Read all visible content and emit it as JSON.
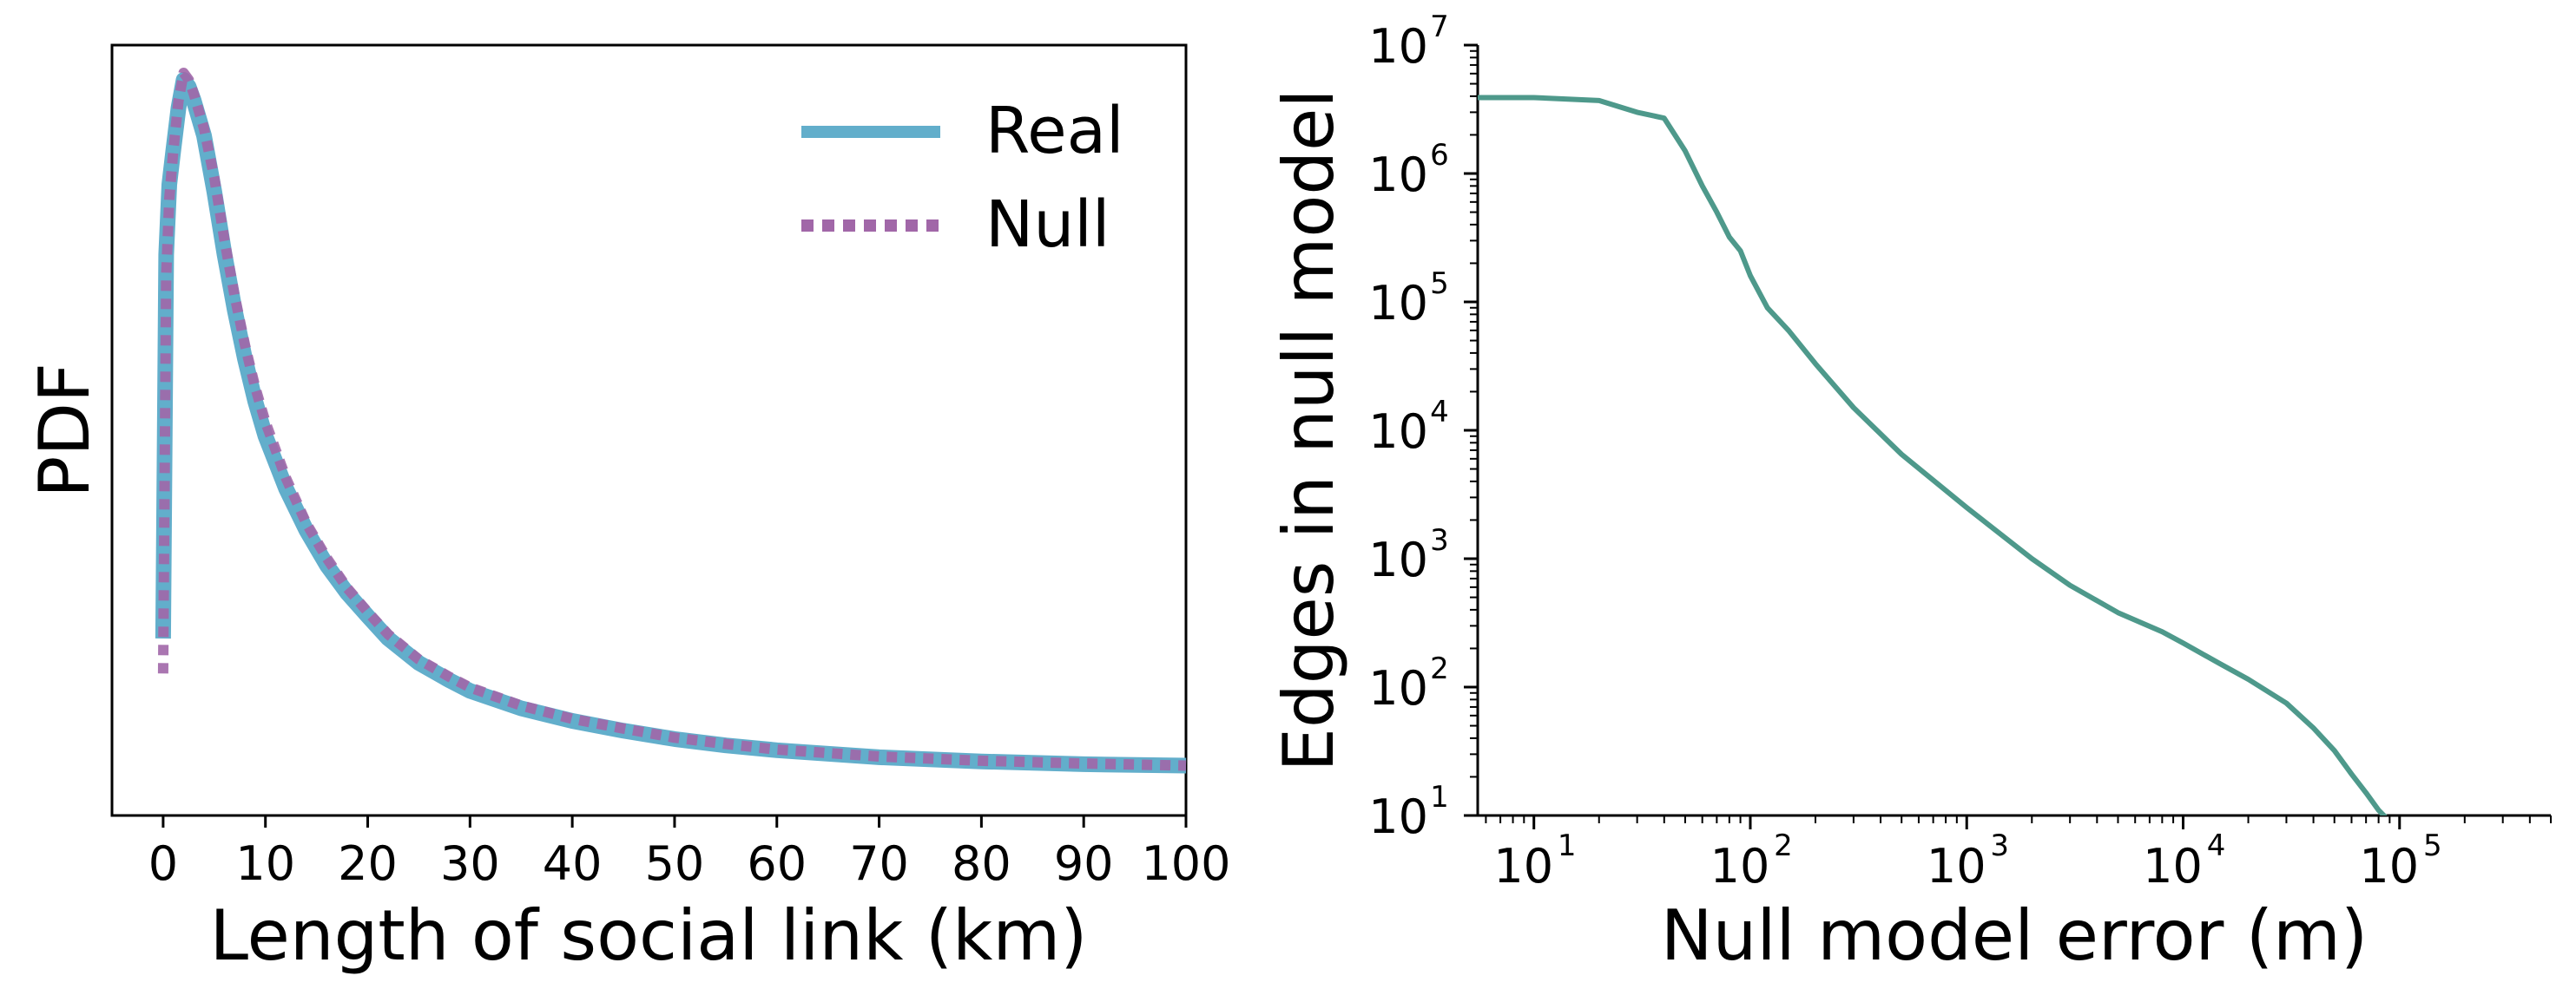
{
  "chart_data": [
    {
      "type": "line",
      "title": "",
      "xlabel": "Length of social link (km)",
      "ylabel": "PDF",
      "xlim": [
        -5,
        100
      ],
      "xticks": [
        0,
        10,
        20,
        30,
        40,
        50,
        60,
        70,
        80,
        90,
        100
      ],
      "yticks": [],
      "ylim_relative": [
        0,
        1.05
      ],
      "legend": {
        "placement": "top-right",
        "entries": [
          "Real",
          "Null"
        ]
      },
      "series": [
        {
          "name": "Real",
          "color": "#62AECB",
          "style": "solid",
          "x": [
            0,
            0.3,
            0.6,
            1.0,
            1.5,
            2.0,
            2.5,
            3,
            4,
            5,
            6,
            7,
            8,
            9,
            10,
            12,
            14,
            16,
            18,
            20,
            22,
            25,
            28,
            30,
            35,
            40,
            45,
            50,
            55,
            60,
            70,
            80,
            90,
            100
          ],
          "values": [
            0.2,
            0.75,
            0.85,
            0.9,
            0.96,
            1.0,
            0.99,
            0.97,
            0.92,
            0.84,
            0.75,
            0.67,
            0.6,
            0.54,
            0.49,
            0.415,
            0.355,
            0.305,
            0.265,
            0.232,
            0.2,
            0.165,
            0.14,
            0.125,
            0.1,
            0.082,
            0.068,
            0.056,
            0.047,
            0.04,
            0.03,
            0.024,
            0.02,
            0.018
          ]
        },
        {
          "name": "Null",
          "color": "#A167A8",
          "style": "dotted",
          "x": [
            0,
            0.3,
            0.6,
            1.0,
            1.5,
            2.0,
            2.5,
            3,
            4,
            5,
            6,
            7,
            8,
            9,
            10,
            12,
            14,
            16,
            18,
            20,
            22,
            25,
            28,
            30,
            35,
            40,
            45,
            50,
            55,
            60,
            70,
            80,
            90,
            100
          ],
          "values": [
            0.15,
            0.72,
            0.83,
            0.9,
            0.97,
            1.01,
            1.0,
            0.98,
            0.93,
            0.86,
            0.77,
            0.69,
            0.62,
            0.56,
            0.51,
            0.43,
            0.365,
            0.315,
            0.272,
            0.238,
            0.206,
            0.17,
            0.145,
            0.13,
            0.104,
            0.085,
            0.071,
            0.058,
            0.049,
            0.041,
            0.031,
            0.025,
            0.021,
            0.018
          ]
        }
      ]
    },
    {
      "type": "line",
      "title": "",
      "xlabel": "Null model error (m)",
      "ylabel": "Edges in null model",
      "xscale": "log",
      "yscale": "log",
      "xlim": [
        5.5,
        500000
      ],
      "ylim": [
        10,
        10000000
      ],
      "xticks": [
        {
          "value": 10,
          "base": "10",
          "exp": "1"
        },
        {
          "value": 100,
          "base": "10",
          "exp": "2"
        },
        {
          "value": 1000,
          "base": "10",
          "exp": "3"
        },
        {
          "value": 10000,
          "base": "10",
          "exp": "4"
        },
        {
          "value": 100000,
          "base": "10",
          "exp": "5"
        }
      ],
      "yticks": [
        {
          "value": 10,
          "base": "10",
          "exp": "1"
        },
        {
          "value": 100,
          "base": "10",
          "exp": "2"
        },
        {
          "value": 1000,
          "base": "10",
          "exp": "3"
        },
        {
          "value": 10000,
          "base": "10",
          "exp": "4"
        },
        {
          "value": 100000,
          "base": "10",
          "exp": "5"
        },
        {
          "value": 1000000,
          "base": "10",
          "exp": "6"
        },
        {
          "value": 10000000,
          "base": "10",
          "exp": "7"
        }
      ],
      "series": [
        {
          "color": "#4E998B",
          "x": [
            5.5,
            10,
            20,
            30,
            40,
            50,
            60,
            70,
            80,
            90,
            100,
            120,
            150,
            200,
            300,
            500,
            1000,
            2000,
            3000,
            5000,
            8000,
            10000,
            15000,
            20000,
            30000,
            40000,
            50000,
            60000,
            70000,
            80000,
            90000
          ],
          "values": [
            3900000,
            3900000,
            3700000,
            3000000,
            2700000,
            1500000,
            800000,
            500000,
            320000,
            250000,
            160000,
            90000,
            60000,
            33000,
            15000,
            6500,
            2500,
            1000,
            620,
            380,
            270,
            220,
            150,
            115,
            75,
            48,
            32,
            21,
            15,
            11,
            9
          ]
        }
      ]
    }
  ]
}
